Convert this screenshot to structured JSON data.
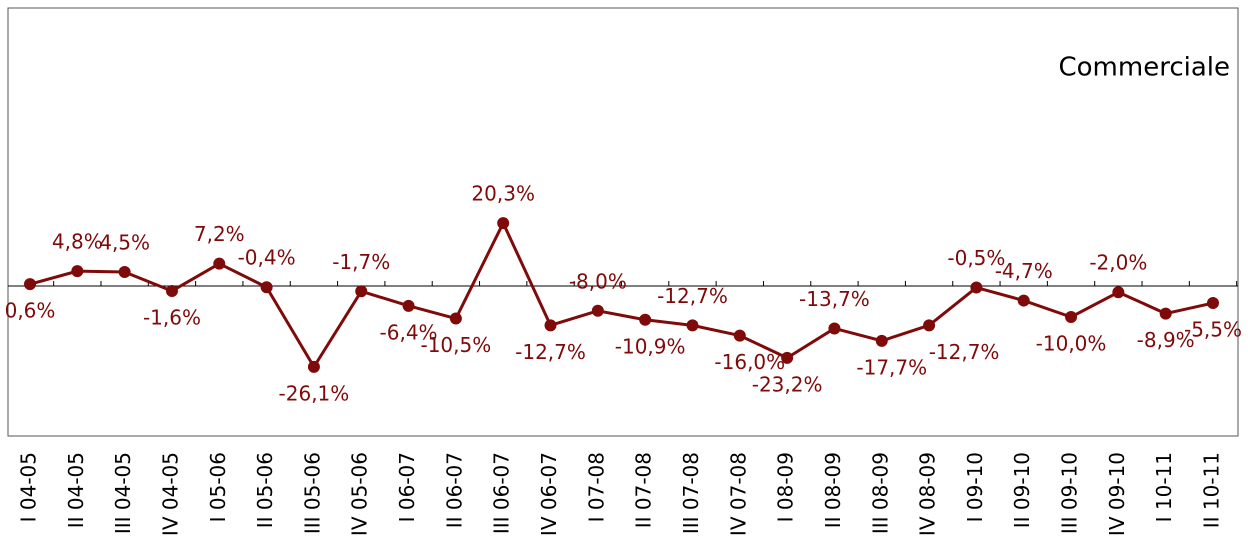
{
  "chart_data": {
    "type": "line",
    "title": "Commerciale",
    "categories": [
      "I 04-05",
      "II 04-05",
      "III 04-05",
      "IV 04-05",
      "I 05-06",
      "II 05-06",
      "III 05-06",
      "IV 05-06",
      "I 06-07",
      "II 06-07",
      "III 06-07",
      "IV 06-07",
      "I 07-08",
      "II 07-08",
      "III 07-08",
      "IV 07-08",
      "I 08-09",
      "II 08-09",
      "III 08-09",
      "IV 08-09",
      "I 09-10",
      "II 09-10",
      "III 09-10",
      "IV 09-10",
      "I 10-11",
      "II 10-11"
    ],
    "values": [
      0.6,
      4.8,
      4.5,
      -1.6,
      7.2,
      -0.4,
      -26.1,
      -1.7,
      -6.4,
      -10.5,
      20.3,
      -12.7,
      -8.0,
      -10.9,
      -12.7,
      -16.0,
      -23.2,
      -13.7,
      -17.7,
      -12.7,
      -0.5,
      -4.7,
      -10.0,
      -2.0,
      -8.9,
      -5.5
    ],
    "value_labels": [
      "0,6%",
      "4,8%",
      "4,5%",
      "-1,6%",
      "7,2%",
      "-0,4%",
      "-26,1%",
      "-1,7%",
      "-6,4%",
      "-10,5%",
      "20,3%",
      "-12,7%",
      "-8,0%",
      "-10,9%",
      "-12,7%",
      "-16,0%",
      "-23,2%",
      "-13,7%",
      "-17,7%",
      "-12,7%",
      "-0,5%",
      "-4,7%",
      "-10,0%",
      "-2,0%",
      "-8,9%",
      "-5,5%"
    ],
    "color": "#7f0a0a",
    "ylim": [
      -48.4,
      89.7
    ]
  }
}
